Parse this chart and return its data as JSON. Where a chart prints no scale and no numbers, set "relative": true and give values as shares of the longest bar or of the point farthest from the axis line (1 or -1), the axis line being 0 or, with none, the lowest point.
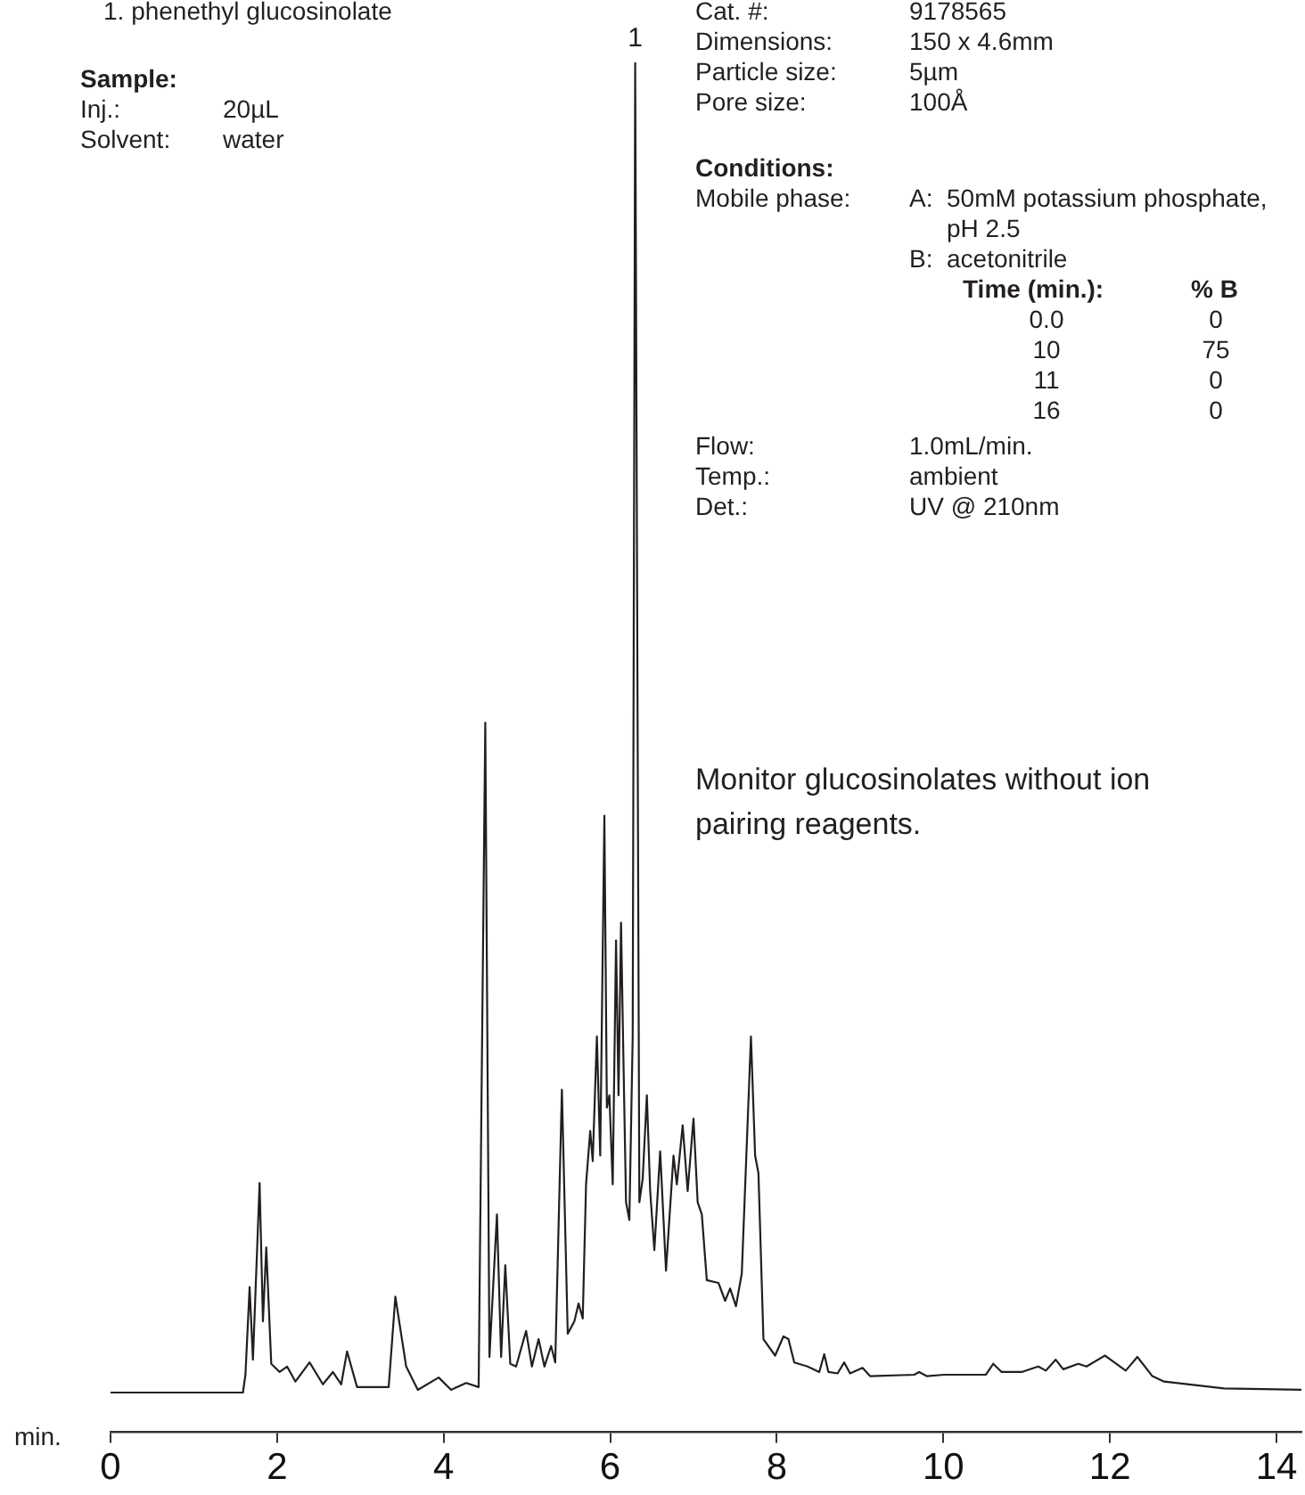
{
  "chart_data": {
    "type": "line",
    "relative": true,
    "color": "#231f20",
    "xlabel": "min.",
    "xlim": [
      0,
      14.3
    ],
    "xticks": [
      0,
      2,
      4,
      6,
      8,
      10,
      12,
      14
    ],
    "x": [
      0,
      1.59,
      1.62,
      1.67,
      1.71,
      1.79,
      1.83,
      1.87,
      1.93,
      2.03,
      2.12,
      2.22,
      2.39,
      2.55,
      2.67,
      2.77,
      2.84,
      2.96,
      3.34,
      3.42,
      3.55,
      3.69,
      3.94,
      4.09,
      4.27,
      4.42,
      4.5,
      4.55,
      4.64,
      4.69,
      4.74,
      4.8,
      4.87,
      4.99,
      5.06,
      5.14,
      5.21,
      5.29,
      5.34,
      5.42,
      5.49,
      5.57,
      5.62,
      5.67,
      5.71,
      5.76,
      5.79,
      5.84,
      5.88,
      5.93,
      5.96,
      5.99,
      6.03,
      6.07,
      6.1,
      6.13,
      6.16,
      6.19,
      6.23,
      6.27,
      6.3,
      6.35,
      6.39,
      6.44,
      6.48,
      6.53,
      6.6,
      6.67,
      6.76,
      6.8,
      6.87,
      6.93,
      7,
      7.05,
      7.1,
      7.16,
      7.3,
      7.38,
      7.44,
      7.51,
      7.58,
      7.69,
      7.74,
      7.78,
      7.84,
      7.98,
      8.08,
      8.14,
      8.21,
      8.37,
      8.51,
      8.57,
      8.62,
      8.73,
      8.81,
      8.88,
      9.03,
      9.12,
      9.65,
      9.71,
      9.8,
      10.01,
      10.51,
      10.6,
      10.7,
      10.94,
      11.14,
      11.23,
      11.35,
      11.44,
      11.62,
      11.72,
      11.94,
      12.19,
      12.33,
      12.51,
      12.65,
      13.37,
      14.3
    ],
    "values": [
      0.029,
      0.029,
      0.042,
      0.106,
      0.053,
      0.182,
      0.081,
      0.135,
      0.05,
      0.044,
      0.048,
      0.037,
      0.051,
      0.035,
      0.044,
      0.035,
      0.059,
      0.033,
      0.033,
      0.099,
      0.048,
      0.031,
      0.04,
      0.031,
      0.036,
      0.033,
      0.518,
      0.055,
      0.159,
      0.055,
      0.122,
      0.05,
      0.048,
      0.074,
      0.048,
      0.068,
      0.048,
      0.063,
      0.051,
      0.25,
      0.072,
      0.081,
      0.094,
      0.083,
      0.181,
      0.22,
      0.198,
      0.289,
      0.202,
      0.45,
      0.237,
      0.246,
      0.181,
      0.359,
      0.246,
      0.372,
      0.268,
      0.168,
      0.155,
      0.289,
      1,
      0.168,
      0.185,
      0.246,
      0.176,
      0.133,
      0.205,
      0.118,
      0.202,
      0.181,
      0.224,
      0.176,
      0.229,
      0.168,
      0.159,
      0.111,
      0.109,
      0.096,
      0.105,
      0.092,
      0.116,
      0.289,
      0.202,
      0.189,
      0.068,
      0.056,
      0.07,
      0.068,
      0.051,
      0.048,
      0.044,
      0.057,
      0.044,
      0.043,
      0.051,
      0.043,
      0.047,
      0.041,
      0.042,
      0.044,
      0.041,
      0.042,
      0.042,
      0.05,
      0.044,
      0.044,
      0.048,
      0.045,
      0.053,
      0.046,
      0.05,
      0.048,
      0.056,
      0.045,
      0.055,
      0.041,
      0.037,
      0.032,
      0.031
    ],
    "annotations": [
      "1. phenethyl glucosinolate",
      "Sample:",
      "Inj.:",
      "20µL",
      "Solvent:",
      "water",
      "Cat. #:",
      "9178565",
      "Dimensions:",
      "150 x 4.6mm",
      "Particle size:",
      "5µm",
      "Pore size:",
      "100Å",
      "Conditions:",
      "Mobile phase:",
      "A:  50mM potassium phosphate,",
      "pH 2.5",
      "B:  acetonitrile",
      "Time (min.):",
      "% B",
      "0.0",
      "0",
      "10",
      "75",
      "11",
      "0",
      "16",
      "0",
      "Flow:",
      "1.0mL/min.",
      "Temp.:",
      "ambient",
      "Det.:",
      "UV @ 210nm",
      "Monitor glucosinolates without ion pairing reagents.",
      {
        "text": "1",
        "x": 6.3,
        "y": 1
      }
    ]
  }
}
